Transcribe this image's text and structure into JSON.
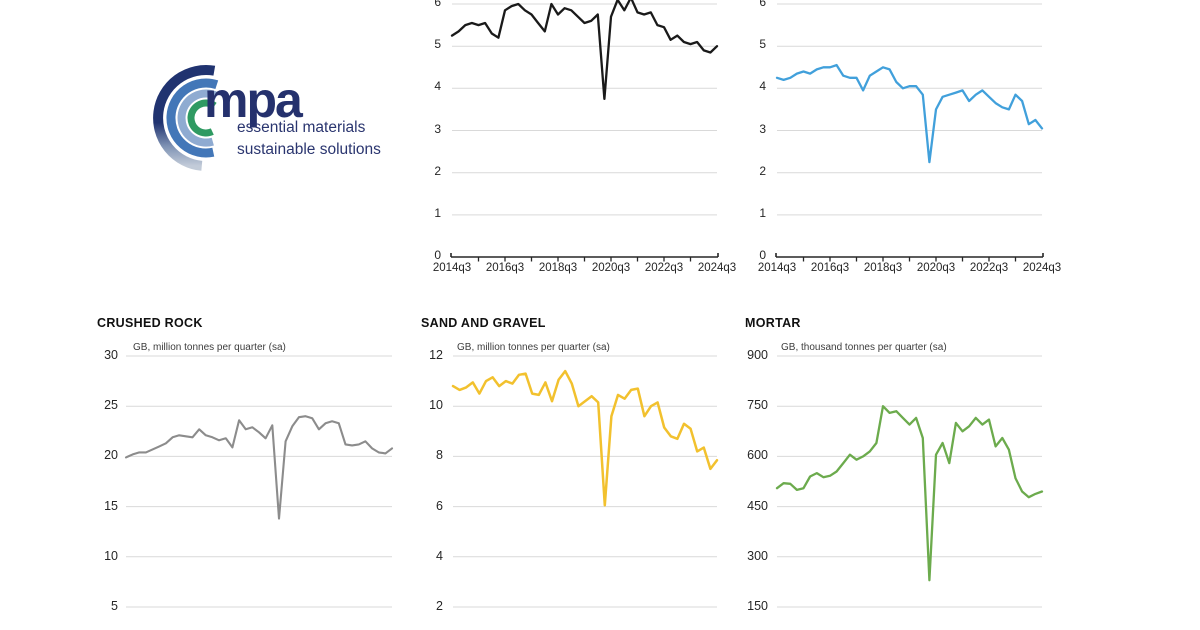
{
  "logo": {
    "brand": "mpa",
    "tagline_line1": "essential materials",
    "tagline_line2": "sustainable solutions",
    "colors": {
      "navy": "#203370",
      "blue": "#4377b8",
      "steel": "#8fabd1",
      "green": "#2f9a62",
      "silver": "#c2cbd8"
    }
  },
  "style": {
    "background": "#ffffff",
    "gridline": "#d9d9d9",
    "axis": "#262626",
    "text": "#262626"
  },
  "chart_data": [
    {
      "id": "top-left-line",
      "type": "line",
      "color": "#1a1a1a",
      "clipped_top": true,
      "ylim": [
        0,
        6
      ],
      "x_range": [
        "2014q3",
        "2024q3"
      ],
      "y_ticks": [
        "6",
        "5",
        "4",
        "3",
        "2",
        "1",
        "0"
      ],
      "x_tick_labels": [
        "2014q3",
        "2016q3",
        "2018q3",
        "2020q3",
        "2022q3",
        "2024q3"
      ],
      "values": [
        5.25,
        5.35,
        5.5,
        5.55,
        5.5,
        5.55,
        5.3,
        5.2,
        5.85,
        5.95,
        6.0,
        5.85,
        5.75,
        5.55,
        5.35,
        6.0,
        5.75,
        5.9,
        5.85,
        5.7,
        5.55,
        5.6,
        5.75,
        3.75,
        5.7,
        6.1,
        5.85,
        6.15,
        5.8,
        5.75,
        5.8,
        5.5,
        5.45,
        5.15,
        5.25,
        5.1,
        5.05,
        5.1,
        4.9,
        4.85,
        5.0
      ]
    },
    {
      "id": "top-right-line",
      "type": "line",
      "color": "#41a0db",
      "clipped_top": true,
      "ylim": [
        0,
        6
      ],
      "x_range": [
        "2014q3",
        "2024q3"
      ],
      "y_ticks": [
        "6",
        "5",
        "4",
        "3",
        "2",
        "1",
        "0"
      ],
      "x_tick_labels": [
        "2014q3",
        "2016q3",
        "2018q3",
        "2020q3",
        "2022q3",
        "2024q3"
      ],
      "values": [
        4.25,
        4.2,
        4.25,
        4.35,
        4.4,
        4.35,
        4.45,
        4.5,
        4.5,
        4.55,
        4.3,
        4.25,
        4.25,
        3.95,
        4.3,
        4.4,
        4.5,
        4.45,
        4.15,
        4.0,
        4.05,
        4.05,
        3.85,
        2.25,
        3.5,
        3.8,
        3.85,
        3.9,
        3.95,
        3.7,
        3.85,
        3.95,
        3.8,
        3.65,
        3.55,
        3.5,
        3.85,
        3.7,
        3.15,
        3.25,
        3.05
      ]
    },
    {
      "id": "crushed-rock",
      "type": "line",
      "title": "CRUSHED ROCK",
      "subtitle": "GB, million tonnes per quarter (sa)",
      "color": "#8c8c8c",
      "clipped_bottom": true,
      "ylim": [
        5,
        30
      ],
      "y_ticks": [
        "30",
        "25",
        "20",
        "15",
        "10",
        "5"
      ],
      "values": [
        19.9,
        20.2,
        20.4,
        20.4,
        20.7,
        21.0,
        21.3,
        21.9,
        22.1,
        22.0,
        21.9,
        22.7,
        22.1,
        21.9,
        21.6,
        21.8,
        20.9,
        23.6,
        22.7,
        22.9,
        22.4,
        21.8,
        23.1,
        13.8,
        21.5,
        23.0,
        23.9,
        24.0,
        23.8,
        22.7,
        23.3,
        23.5,
        23.3,
        21.2,
        21.1,
        21.2,
        21.5,
        20.8,
        20.4,
        20.3,
        20.8
      ]
    },
    {
      "id": "sand-and-gravel",
      "type": "line",
      "title": "SAND AND GRAVEL",
      "subtitle": "GB, million tonnes per quarter (sa)",
      "color": "#f2c12e",
      "clipped_bottom": true,
      "ylim": [
        2,
        12
      ],
      "y_ticks": [
        "12",
        "10",
        "8",
        "6",
        "4",
        "2"
      ],
      "values": [
        10.8,
        10.65,
        10.75,
        10.95,
        10.5,
        11.0,
        11.15,
        10.8,
        11.0,
        10.9,
        11.25,
        11.3,
        10.5,
        10.45,
        10.95,
        10.2,
        11.05,
        11.4,
        10.9,
        10.0,
        10.2,
        10.4,
        10.15,
        6.05,
        9.6,
        10.45,
        10.3,
        10.65,
        10.7,
        9.6,
        10.0,
        10.15,
        9.15,
        8.8,
        8.7,
        9.3,
        9.1,
        8.2,
        8.35,
        7.5,
        7.85
      ]
    },
    {
      "id": "mortar",
      "type": "line",
      "title": "MORTAR",
      "subtitle": "GB, thousand tonnes per quarter (sa)",
      "color": "#6cab4d",
      "clipped_bottom": true,
      "ylim": [
        150,
        900
      ],
      "y_ticks": [
        "900",
        "750",
        "600",
        "450",
        "300",
        "150"
      ],
      "values": [
        505,
        520,
        518,
        500,
        505,
        540,
        550,
        538,
        542,
        555,
        580,
        605,
        590,
        600,
        615,
        640,
        750,
        730,
        735,
        715,
        695,
        715,
        655,
        230,
        605,
        640,
        580,
        700,
        675,
        690,
        715,
        695,
        710,
        630,
        655,
        620,
        535,
        495,
        478,
        488,
        495
      ]
    }
  ]
}
